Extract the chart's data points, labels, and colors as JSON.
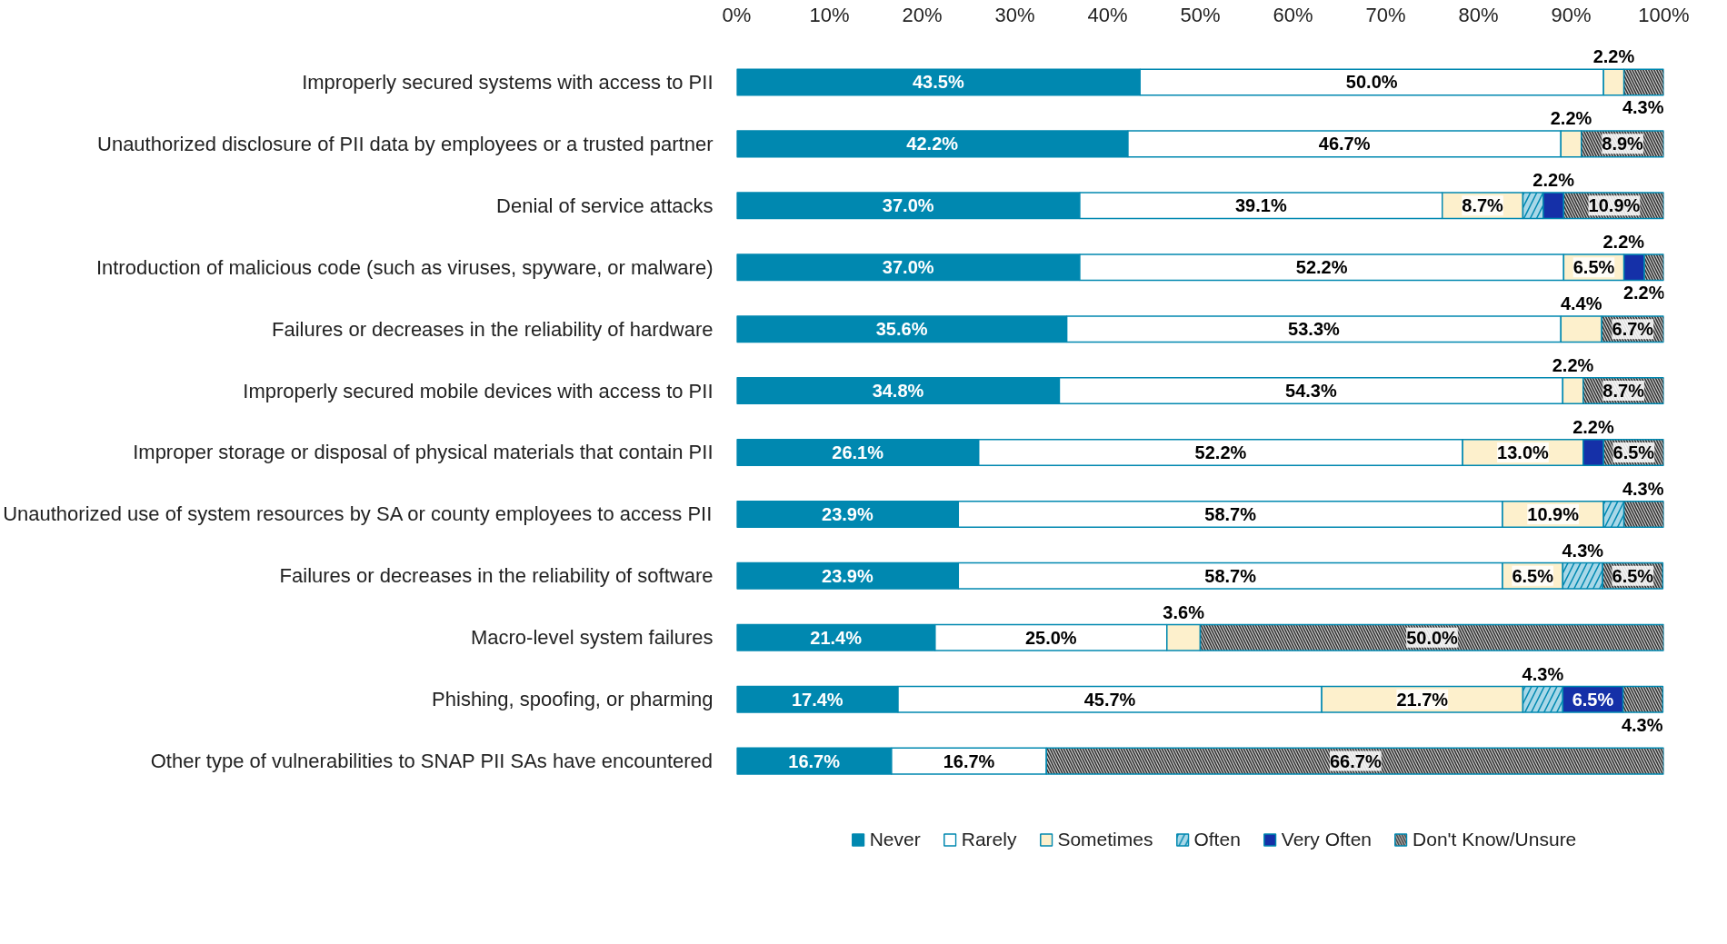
{
  "chart_data": {
    "type": "bar",
    "orientation": "horizontal",
    "stacked": true,
    "categories": [
      "Improperly secured systems with access to PII",
      "Unauthorized disclosure of PII data by employees or a trusted partner",
      "Denial of service attacks",
      "Introduction of malicious code (such as viruses, spyware, or malware)",
      "Failures or decreases in the reliability of hardware",
      "Improperly secured mobile devices with access to PII",
      "Improper storage or disposal of physical materials that contain PII",
      "Unauthorized use of system resources by SA or county employees to access PII",
      "Failures or decreases in the reliability of software",
      "Macro-level system failures",
      "Phishing, spoofing, or pharming",
      "Other type of vulnerabilities to SNAP PII SAs have encountered"
    ],
    "series": [
      {
        "name": "Never",
        "color": "#0088b0",
        "values": [
          43.5,
          42.2,
          37.0,
          37.0,
          35.6,
          34.8,
          26.1,
          23.9,
          23.9,
          21.4,
          17.4,
          16.7
        ],
        "value_labels": [
          "43.5%",
          "42.2%",
          "37.0%",
          "37.0%",
          "35.6%",
          "34.8%",
          "26.1%",
          "23.9%",
          "23.9%",
          "21.4%",
          "17.4%",
          "16.7%"
        ]
      },
      {
        "name": "Rarely",
        "color": "#ffffff",
        "values": [
          50.0,
          46.7,
          39.1,
          52.2,
          53.3,
          54.3,
          52.2,
          58.7,
          58.7,
          25.0,
          45.7,
          16.7
        ],
        "value_labels": [
          "50.0%",
          "46.7%",
          "39.1%",
          "52.2%",
          "53.3%",
          "54.3%",
          "52.2%",
          "58.7%",
          "58.7%",
          "25.0%",
          "45.7%",
          "16.7%"
        ]
      },
      {
        "name": "Sometimes",
        "color": "#fdf0cc",
        "values": [
          2.2,
          2.2,
          8.7,
          6.5,
          4.4,
          2.2,
          13.0,
          10.9,
          6.5,
          3.6,
          21.7,
          null
        ],
        "value_labels": [
          "2.2%",
          "2.2%",
          "8.7%",
          "6.5%",
          "4.4%",
          "2.2%",
          "13.0%",
          "10.9%",
          "6.5%",
          "3.6%",
          "21.7%",
          null
        ]
      },
      {
        "name": "Often",
        "color": "#a8d8e8",
        "values": [
          null,
          null,
          2.2,
          null,
          null,
          null,
          null,
          2.2,
          4.3,
          null,
          4.3,
          null
        ],
        "value_labels": [
          null,
          null,
          null,
          null,
          null,
          null,
          null,
          null,
          "4.3%",
          null,
          "4.3%",
          null
        ]
      },
      {
        "name": "Very Often",
        "color": "#1530a8",
        "values": [
          null,
          null,
          2.2,
          2.2,
          null,
          null,
          2.2,
          null,
          null,
          null,
          6.5,
          null
        ],
        "value_labels": [
          null,
          null,
          "2.2%",
          "2.2%",
          null,
          null,
          "2.2%",
          null,
          null,
          null,
          "6.5%",
          null
        ]
      },
      {
        "name": "Don't Know/Unsure",
        "color": "#c8c8c8",
        "values": [
          4.3,
          8.9,
          10.9,
          2.2,
          6.7,
          8.7,
          6.5,
          4.3,
          6.5,
          50.0,
          4.3,
          66.7
        ],
        "value_labels": [
          "4.3%",
          "8.9%",
          "10.9%",
          "2.2%",
          "6.7%",
          "8.7%",
          "6.5%",
          "4.3%",
          "6.5%",
          "50.0%",
          "4.3%",
          "66.7%"
        ]
      }
    ],
    "xlim": [
      0,
      100
    ],
    "xticks": [
      {
        "value": 0,
        "label": "0%"
      },
      {
        "value": 10,
        "label": "10%"
      },
      {
        "value": 20,
        "label": "20%"
      },
      {
        "value": 30,
        "label": "30%"
      },
      {
        "value": 40,
        "label": "40%"
      },
      {
        "value": 50,
        "label": "50%"
      },
      {
        "value": 60,
        "label": "60%"
      },
      {
        "value": 70,
        "label": "70%"
      },
      {
        "value": 80,
        "label": "80%"
      },
      {
        "value": 90,
        "label": "90%"
      },
      {
        "value": 100,
        "label": "100%"
      }
    ],
    "grid": false,
    "legend": "bottom"
  }
}
